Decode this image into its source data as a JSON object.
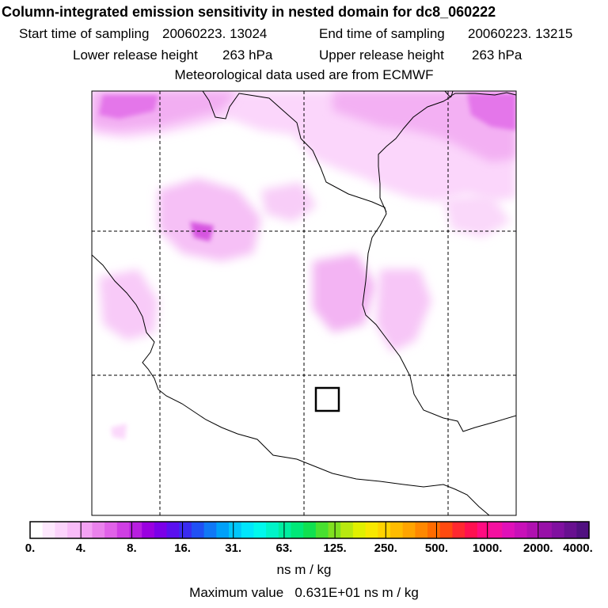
{
  "header": {
    "title": "Column-integrated emission sensitivity in nested domain for dc8_060222",
    "start_label": "Start time of sampling",
    "start_value": "20060223. 13024",
    "end_label": "End time of sampling",
    "end_value": "20060223. 13215",
    "lower_label": "Lower release height",
    "lower_value": "263 hPa",
    "upper_label": "Upper release height",
    "upper_value": "263 hPa",
    "met_line": "Meteorological data used are from ECMWF"
  },
  "colorbar": {
    "tick_labels": [
      "0.",
      "4.",
      "8.",
      "16.",
      "31.",
      "63.",
      "125.",
      "250.",
      "500.",
      "1000.",
      "2000.",
      "4000."
    ],
    "colors": [
      "#ffffff",
      "#fde8fd",
      "#fbd3fb",
      "#f8bcf8",
      "#f3a2f3",
      "#ea82ec",
      "#e062e8",
      "#cf3fe4",
      "#b81ee0",
      "#9a00e0",
      "#7b00e8",
      "#5a10ee",
      "#3a2cf0",
      "#2050f4",
      "#1078f6",
      "#00a0f8",
      "#00c6fa",
      "#00e6fc",
      "#00f8ec",
      "#00f4c8",
      "#00eea0",
      "#00e878",
      "#10e050",
      "#48e030",
      "#80e020",
      "#b8e810",
      "#e0f000",
      "#f8e800",
      "#ffd400",
      "#ffbc00",
      "#ffa400",
      "#ff8800",
      "#ff6c00",
      "#ff4a10",
      "#ff2830",
      "#ff1050",
      "#ff0c80",
      "#f410a0",
      "#e010b8",
      "#c810b8",
      "#b010b0",
      "#9810a8",
      "#8010a0",
      "#681090",
      "#501080"
    ],
    "units": "ns m / kg",
    "max_label": "Maximum value",
    "max_value": "0.631E+01 ns m / kg"
  }
}
